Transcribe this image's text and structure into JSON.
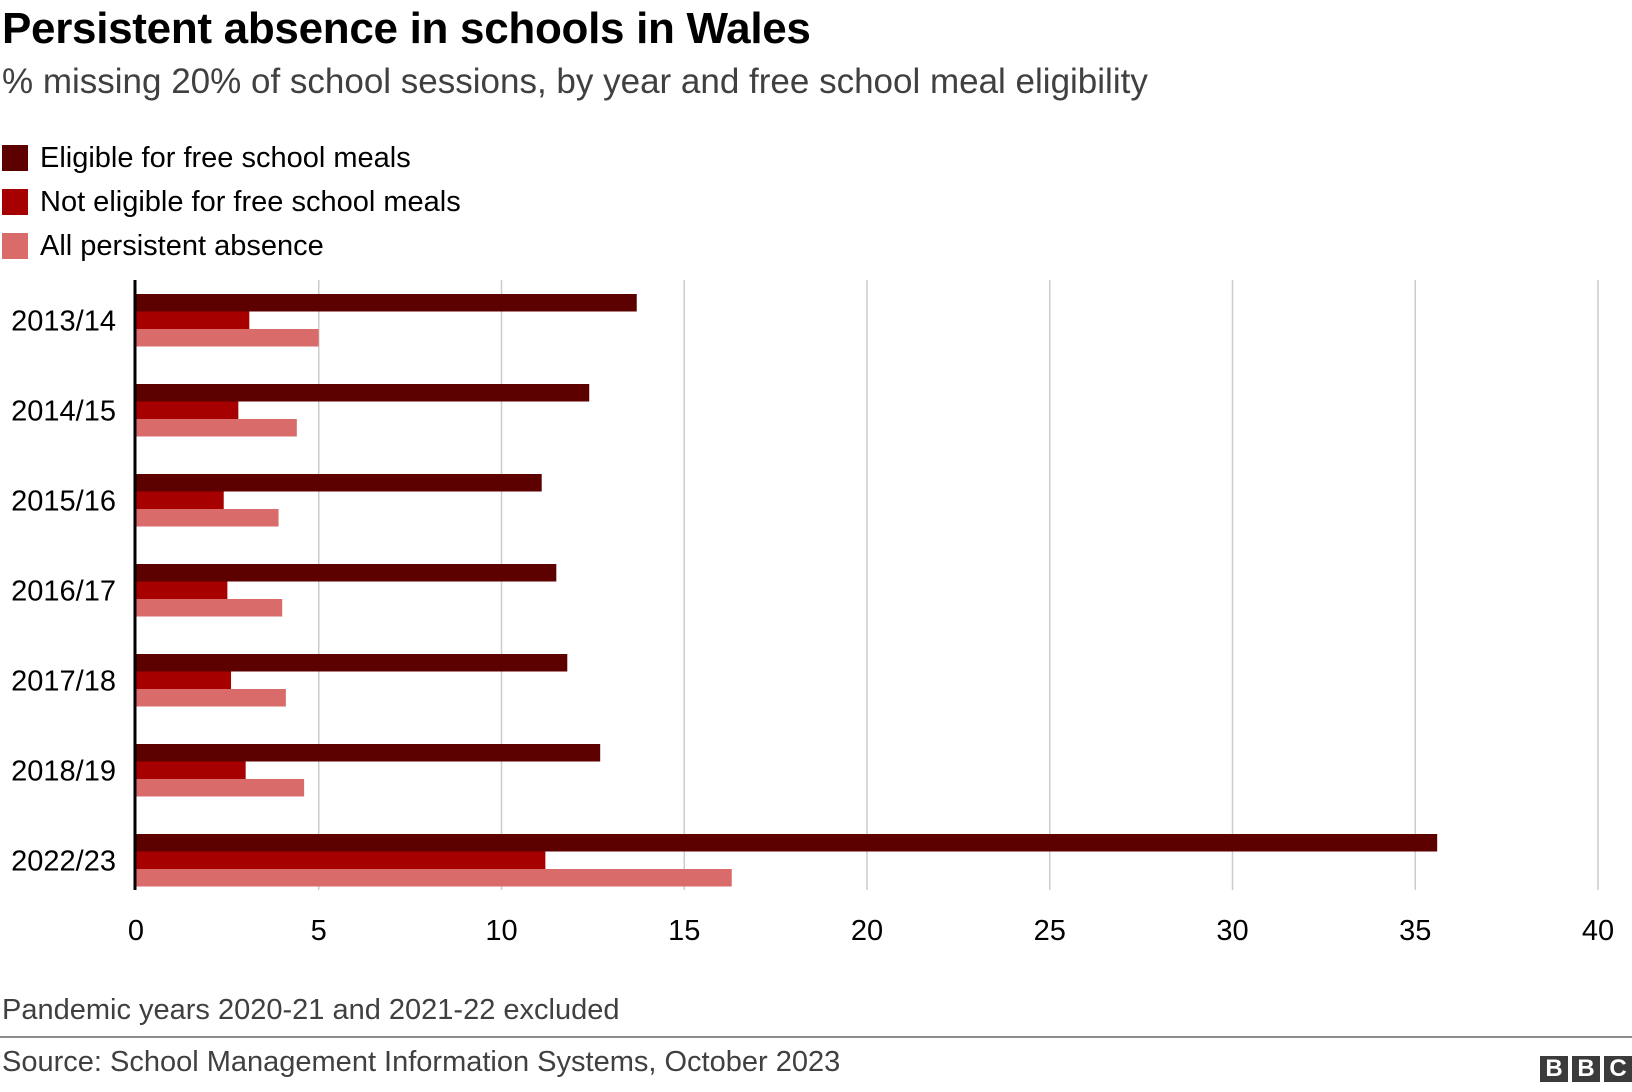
{
  "header": {
    "title": "Persistent absence in schools in Wales",
    "subtitle": "% missing 20% of school sessions, by year and free school meal eligibility"
  },
  "footer": {
    "note": "Pandemic years 2020-21 and 2021-22 excluded",
    "source": "Source: School Management Information Systems, October 2023",
    "logo_letters": [
      "B",
      "B",
      "C"
    ]
  },
  "colors": {
    "eligible": "#5c0000",
    "not_eligible": "#a60000",
    "all": "#d96b6b",
    "grid": "#cccccc",
    "axis": "#000000"
  },
  "chart_data": {
    "type": "bar",
    "orientation": "horizontal",
    "title": "Persistent absence in schools in Wales",
    "subtitle": "% missing 20% of school sessions, by year and free school meal eligibility",
    "categories": [
      "2013/14",
      "2014/15",
      "2015/16",
      "2016/17",
      "2017/18",
      "2018/19",
      "2022/23"
    ],
    "series": [
      {
        "name": "Eligible for free school meals",
        "color": "#5c0000",
        "values": [
          13.7,
          12.4,
          11.1,
          11.5,
          11.8,
          12.7,
          35.6
        ]
      },
      {
        "name": "Not eligible for free school meals",
        "color": "#a60000",
        "values": [
          3.1,
          2.8,
          2.4,
          2.5,
          2.6,
          3.0,
          11.2
        ]
      },
      {
        "name": "All persistent absence",
        "color": "#d96b6b",
        "values": [
          5.0,
          4.4,
          3.9,
          4.0,
          4.1,
          4.6,
          16.3
        ]
      }
    ],
    "xlim": [
      0,
      40
    ],
    "xticks": [
      0,
      5,
      10,
      15,
      20,
      25,
      30,
      35,
      40
    ],
    "grid": true,
    "legend_position": "top-left"
  }
}
